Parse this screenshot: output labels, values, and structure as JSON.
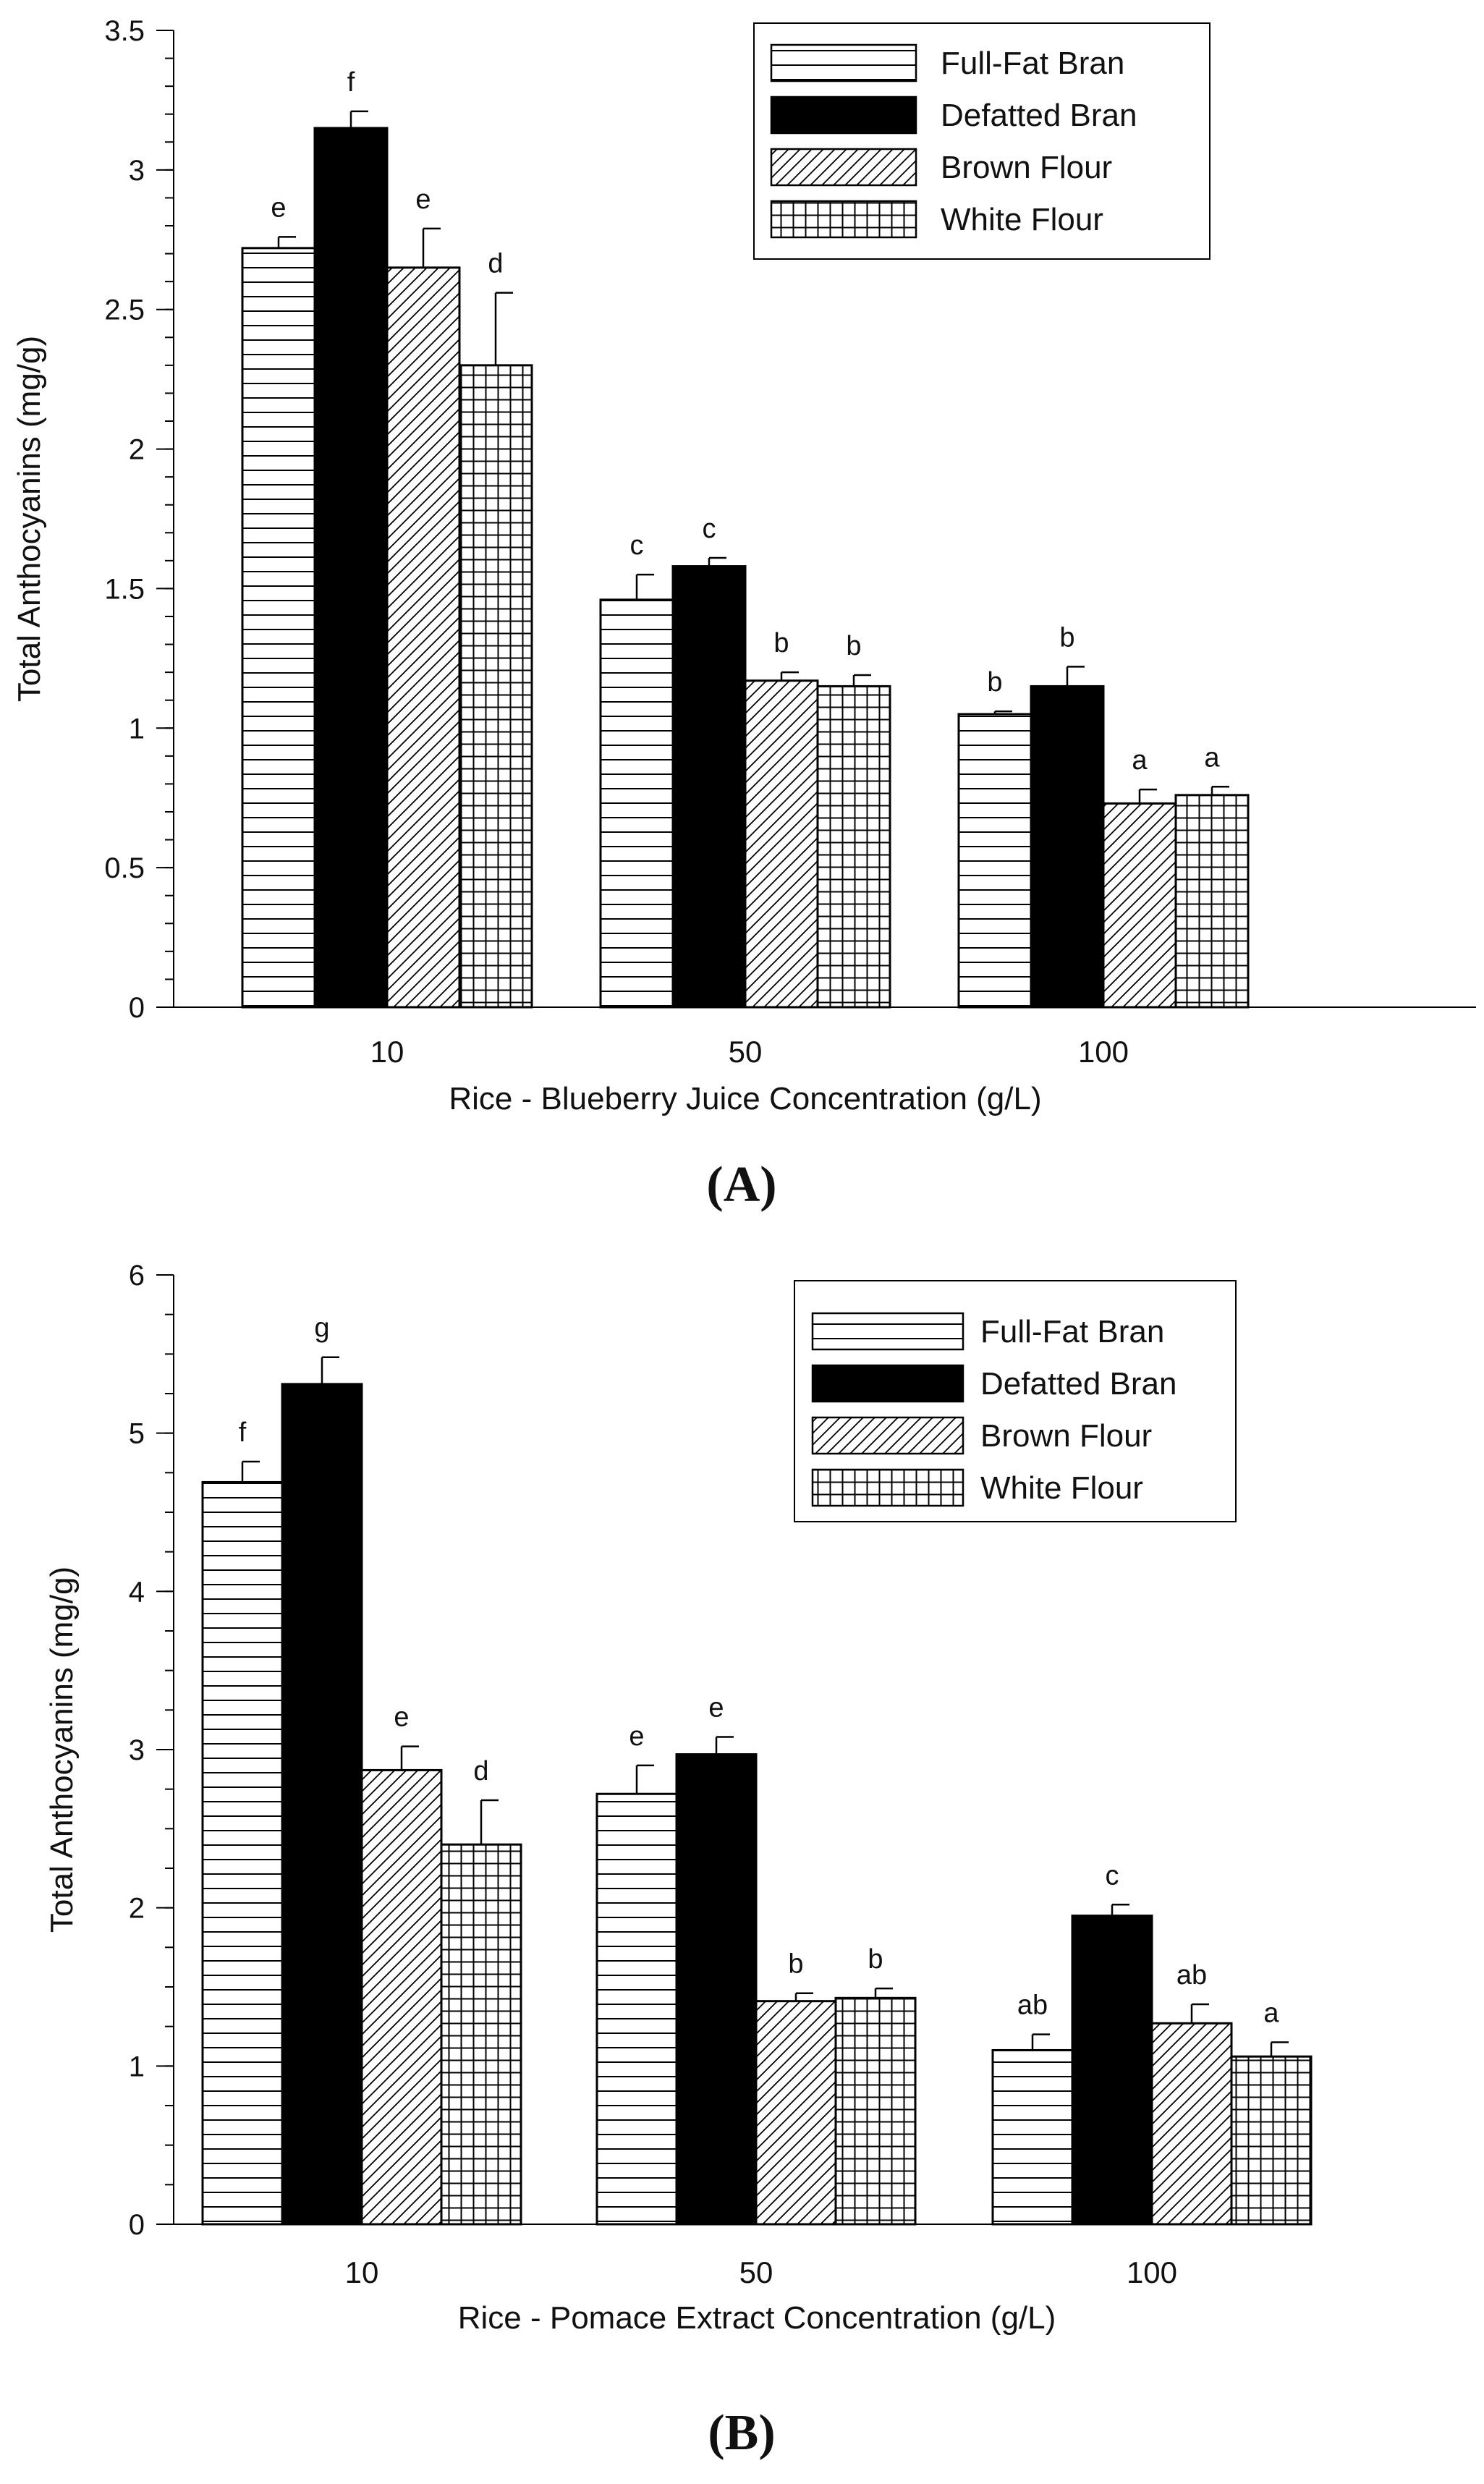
{
  "chart_data": [
    {
      "type": "bar",
      "panel_label": "(A)",
      "title": "",
      "xlabel": "Rice - Blueberry Juice Concentration (g/L)",
      "ylabel": "Total Anthocyanins (mg/g)",
      "ylim": [
        0,
        3.5
      ],
      "yticks": [
        0,
        0.5,
        1,
        1.5,
        2,
        2.5,
        3,
        3.5
      ],
      "ytick_labels": [
        "0",
        "0.5",
        "1",
        "1.5",
        "2",
        "2.5",
        "3",
        "3.5"
      ],
      "categories": [
        "10",
        "50",
        "100"
      ],
      "legend_position": "top-right",
      "series": [
        {
          "name": "Full-Fat Bran",
          "pattern": "horizontal",
          "values": [
            2.72,
            1.46,
            1.05
          ],
          "errors": [
            0.04,
            0.09,
            0.01
          ],
          "letters": [
            "e",
            "c",
            "b"
          ]
        },
        {
          "name": "Defatted Bran",
          "pattern": "solid",
          "values": [
            3.15,
            1.58,
            1.15
          ],
          "errors": [
            0.06,
            0.03,
            0.07
          ],
          "letters": [
            "f",
            "c",
            "b"
          ]
        },
        {
          "name": "Brown Flour",
          "pattern": "diagonal",
          "values": [
            2.65,
            1.17,
            0.73
          ],
          "errors": [
            0.14,
            0.03,
            0.05
          ],
          "letters": [
            "e",
            "b",
            "a"
          ]
        },
        {
          "name": "White Flour",
          "pattern": "grid",
          "values": [
            2.3,
            1.15,
            0.76
          ],
          "errors": [
            0.26,
            0.04,
            0.03
          ],
          "letters": [
            "d",
            "b",
            "a"
          ]
        }
      ]
    },
    {
      "type": "bar",
      "panel_label": "(B)",
      "title": "",
      "xlabel": "Rice - Pomace Extract Concentration (g/L)",
      "ylabel": "Total Anthocyanins (mg/g)",
      "ylim": [
        0,
        6
      ],
      "yticks": [
        0,
        1,
        2,
        3,
        4,
        5,
        6
      ],
      "ytick_labels": [
        "0",
        "1",
        "2",
        "3",
        "4",
        "5",
        "6"
      ],
      "categories": [
        "10",
        "50",
        "100"
      ],
      "legend_position": "top-right",
      "series": [
        {
          "name": "Full-Fat Bran",
          "pattern": "horizontal",
          "values": [
            4.69,
            2.72,
            1.1
          ],
          "errors": [
            0.13,
            0.18,
            0.1
          ],
          "letters": [
            "f",
            "e",
            "ab"
          ]
        },
        {
          "name": "Defatted Bran",
          "pattern": "solid",
          "values": [
            5.31,
            2.97,
            1.95
          ],
          "errors": [
            0.17,
            0.11,
            0.07
          ],
          "letters": [
            "g",
            "e",
            "c"
          ]
        },
        {
          "name": "Brown Flour",
          "pattern": "diagonal",
          "values": [
            2.87,
            1.41,
            1.27
          ],
          "errors": [
            0.15,
            0.05,
            0.12
          ],
          "letters": [
            "e",
            "b",
            "ab"
          ]
        },
        {
          "name": "White Flour",
          "pattern": "grid",
          "values": [
            2.4,
            1.43,
            1.06
          ],
          "errors": [
            0.28,
            0.06,
            0.09
          ],
          "letters": [
            "d",
            "b",
            "a"
          ]
        }
      ]
    }
  ]
}
